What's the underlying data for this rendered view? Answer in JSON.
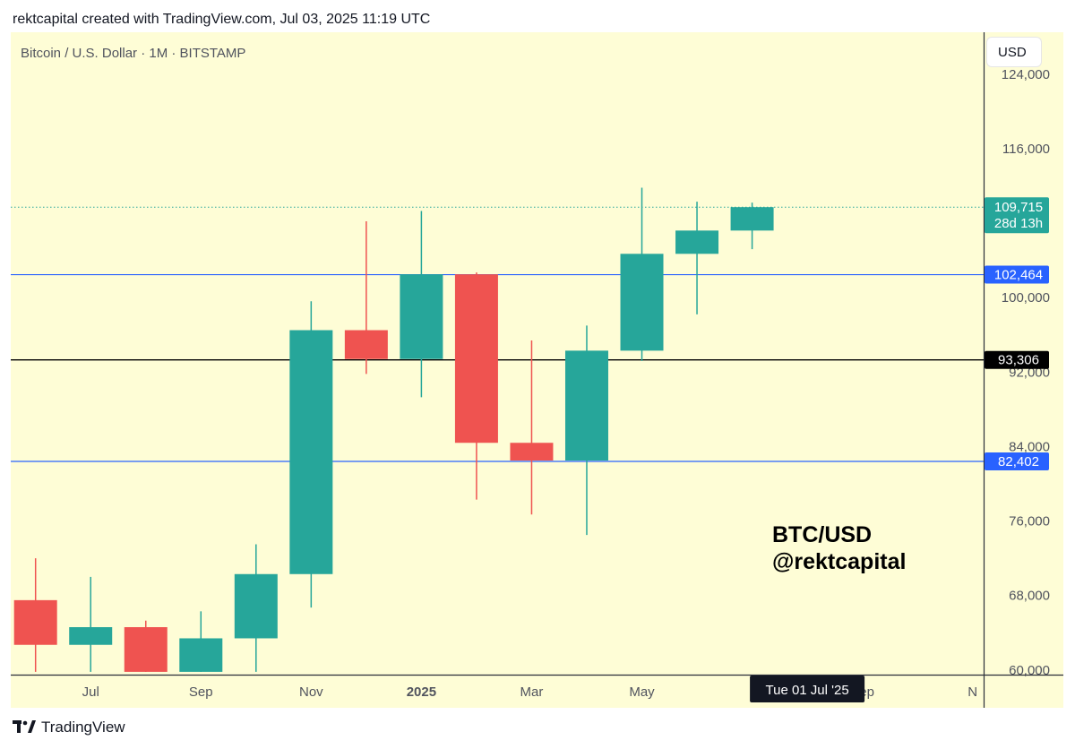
{
  "header": {
    "attribution": "rektcapital created with TradingView.com, Jul 03, 2025 11:19 UTC"
  },
  "toolbar": {
    "currency": "USD"
  },
  "footer": {
    "brand": "TradingView"
  },
  "watermark": {
    "line1": "BTC/USD",
    "line2": "@rektcapital"
  },
  "chart_data": {
    "type": "candlestick",
    "title": "Bitcoin / U.S. Dollar · 1M · BITSTAMP",
    "ylim": [
      59500,
      128500
    ],
    "y_ticks": [
      {
        "value": 60000,
        "label": "60,000"
      },
      {
        "value": 68000,
        "label": "68,000"
      },
      {
        "value": 76000,
        "label": "76,000"
      },
      {
        "value": 84000,
        "label": "84,000"
      },
      {
        "value": 92000,
        "label": "92,000"
      },
      {
        "value": 100000,
        "label": "100,000"
      },
      {
        "value": 116000,
        "label": "116,000"
      },
      {
        "value": 124000,
        "label": "124,000"
      }
    ],
    "x_ticks": [
      {
        "index": 1,
        "label": "Jul",
        "bold": false
      },
      {
        "index": 3,
        "label": "Sep",
        "bold": false
      },
      {
        "index": 5,
        "label": "Nov",
        "bold": false
      },
      {
        "index": 7,
        "label": "2025",
        "bold": true
      },
      {
        "index": 9,
        "label": "Mar",
        "bold": false
      },
      {
        "index": 11,
        "label": "May",
        "bold": false
      },
      {
        "index": 15,
        "label": "Sep",
        "bold": false
      },
      {
        "index": 17,
        "label": "N",
        "bold": false
      }
    ],
    "x_index_range": [
      -0.45,
      17.2
    ],
    "candles": [
      {
        "month": "Jun 2024",
        "open": 67500,
        "high": 72000,
        "low": 59800,
        "close": 62700
      },
      {
        "month": "Jul 2024",
        "open": 62700,
        "high": 70000,
        "low": 59800,
        "close": 64600
      },
      {
        "month": "Aug 2024",
        "open": 64600,
        "high": 65300,
        "low": 59800,
        "close": 59800
      },
      {
        "month": "Sep 2024",
        "open": 59800,
        "high": 66300,
        "low": 59800,
        "close": 63400
      },
      {
        "month": "Oct 2024",
        "open": 63400,
        "high": 73500,
        "low": 59800,
        "close": 70300
      },
      {
        "month": "Nov 2024",
        "open": 70300,
        "high": 99600,
        "low": 66700,
        "close": 96500
      },
      {
        "month": "Dec 2024",
        "open": 96500,
        "high": 108200,
        "low": 91800,
        "close": 93400
      },
      {
        "month": "Jan 2025",
        "open": 93400,
        "high": 109300,
        "low": 89300,
        "close": 102500
      },
      {
        "month": "Feb 2025",
        "open": 102500,
        "high": 102700,
        "low": 78300,
        "close": 84400
      },
      {
        "month": "Mar 2025",
        "open": 84400,
        "high": 95400,
        "low": 76700,
        "close": 82500
      },
      {
        "month": "Apr 2025",
        "open": 82500,
        "high": 97000,
        "low": 74500,
        "close": 94300
      },
      {
        "month": "May 2025",
        "open": 94300,
        "high": 111800,
        "low": 93200,
        "close": 104700
      },
      {
        "month": "Jun 2025",
        "open": 104700,
        "high": 110300,
        "low": 98200,
        "close": 107200
      },
      {
        "month": "Jul 2025",
        "open": 107200,
        "high": 110200,
        "low": 105200,
        "close": 109715
      }
    ],
    "horizontal_lines": [
      {
        "value": 102464,
        "label": "102,464",
        "color": "#2962ff",
        "style": "solid"
      },
      {
        "value": 93306,
        "label": "93,306",
        "color": "#000000",
        "style": "solid"
      },
      {
        "value": 82402,
        "label": "82,402",
        "color": "#2962ff",
        "style": "solid"
      }
    ],
    "last_price": {
      "value": 109715,
      "label": "109,715",
      "countdown": "28d 13h",
      "color": "#26a69a"
    },
    "crosshair_label": {
      "index": 14,
      "label": "Tue 01 Jul '25"
    },
    "colors": {
      "up": "#26a69a",
      "down": "#ef5350",
      "background": "#fefdd6",
      "support_line": "#2962ff"
    }
  }
}
